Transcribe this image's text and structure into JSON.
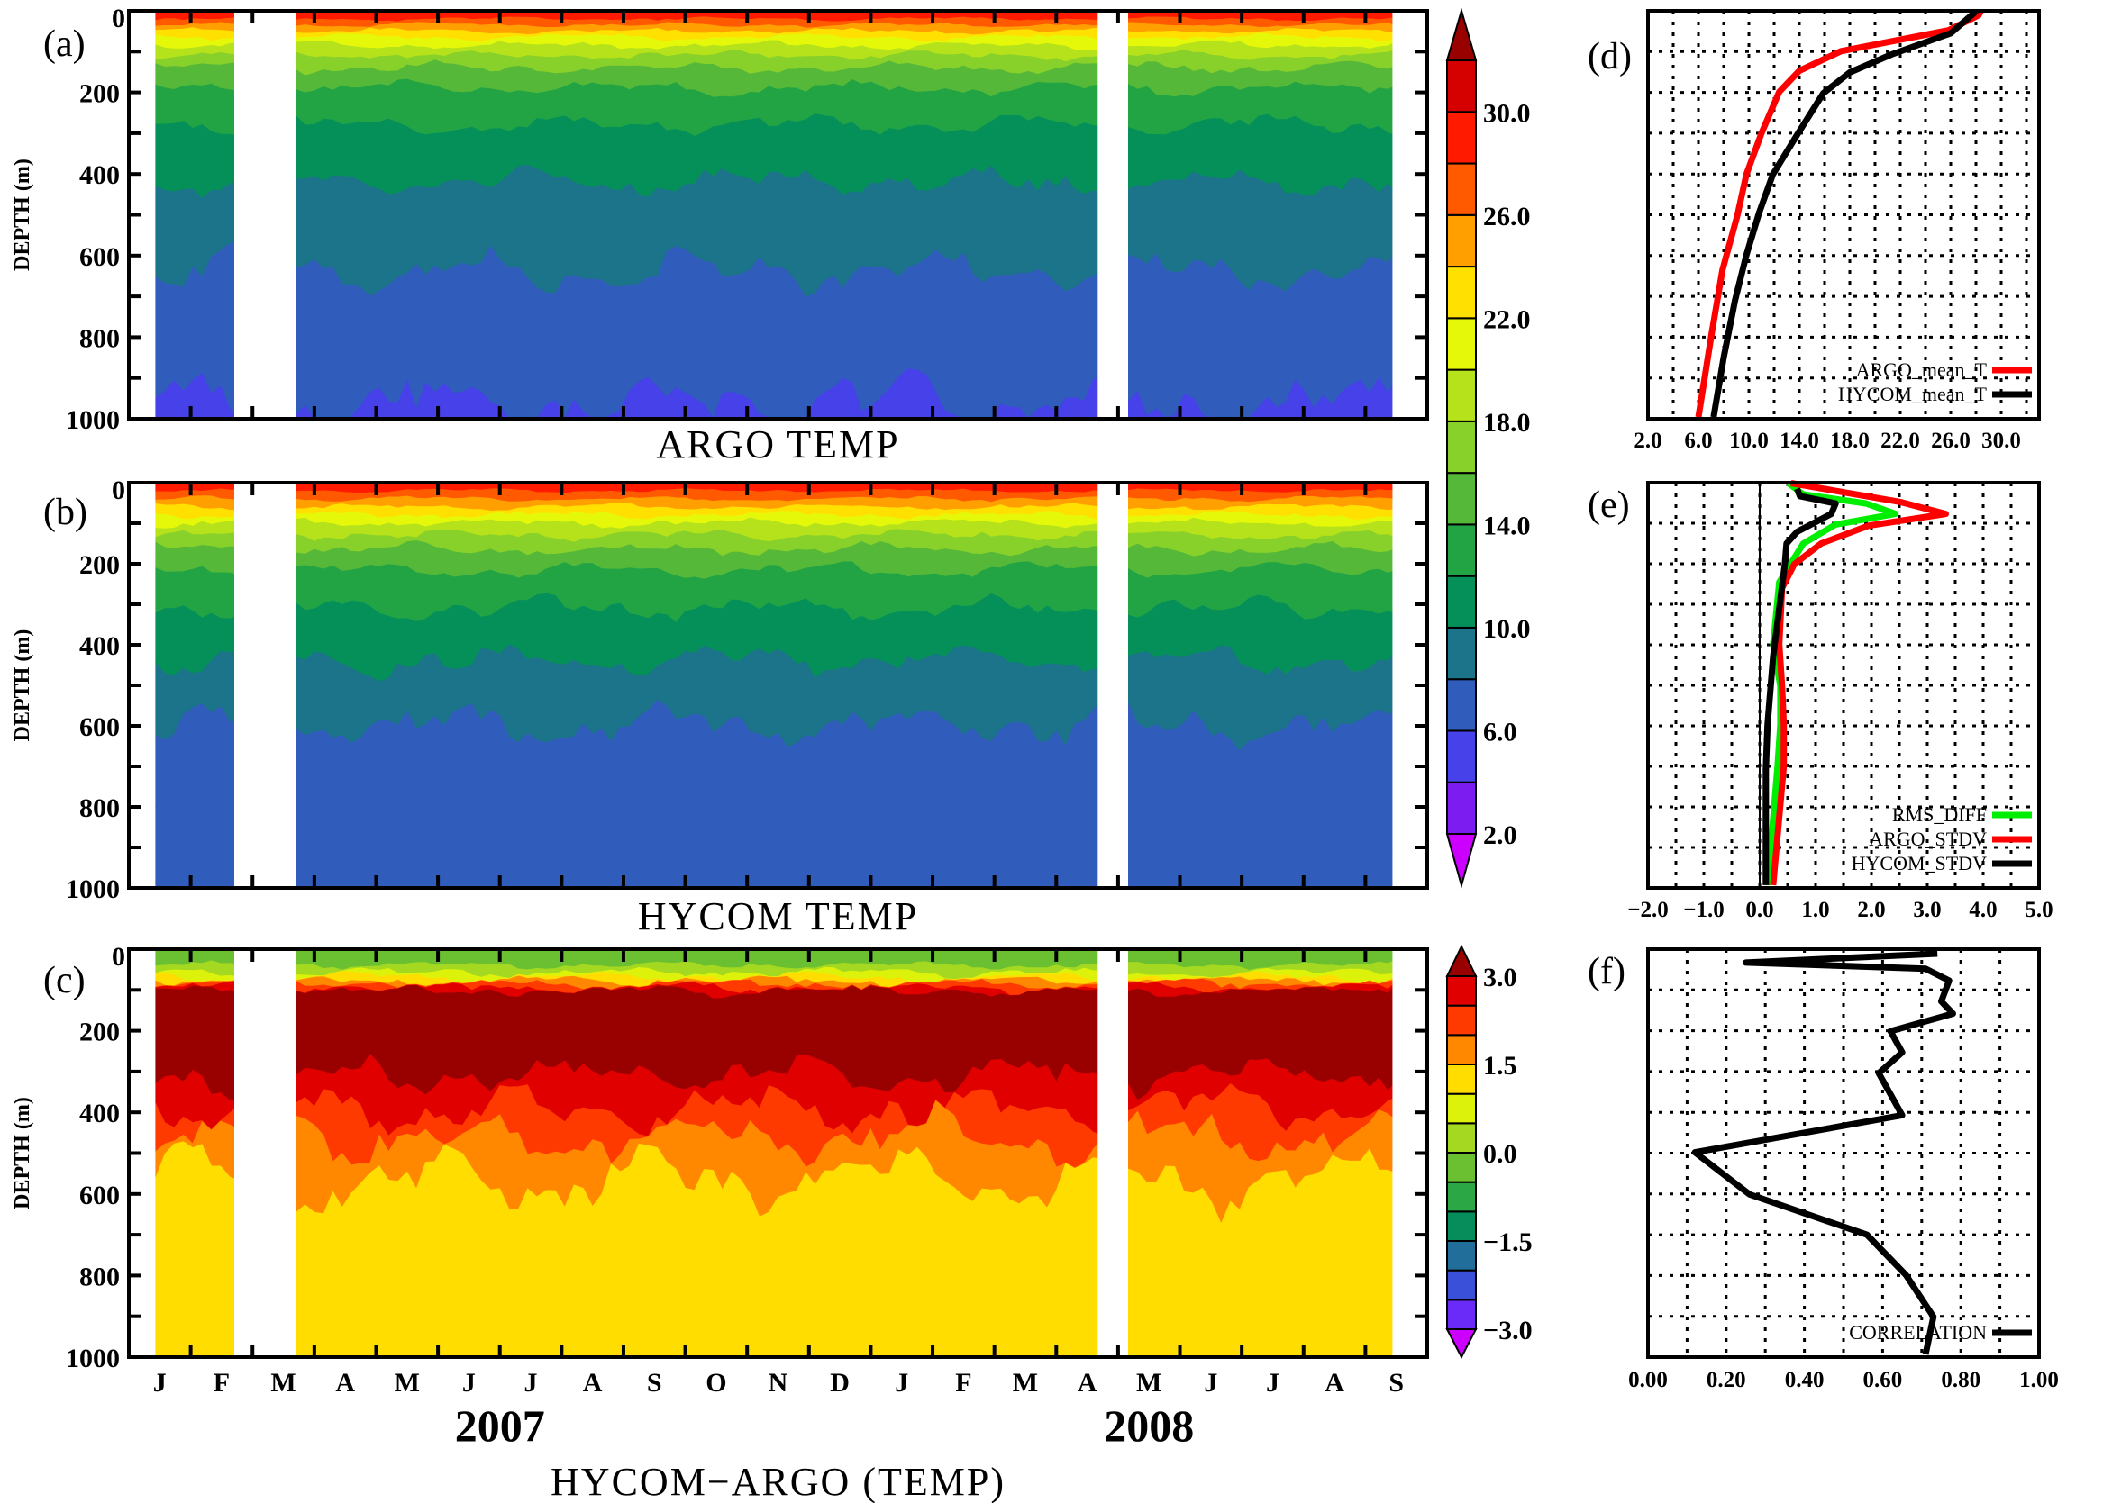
{
  "time_axis": {
    "x_range": [
      "2007-01-01",
      "2008-10-01"
    ],
    "month_labels": [
      "J",
      "F",
      "M",
      "A",
      "M",
      "J",
      "J",
      "A",
      "S",
      "O",
      "N",
      "D",
      "J",
      "F",
      "M",
      "A",
      "M",
      "J",
      "J",
      "A",
      "S"
    ],
    "years": [
      "2007",
      "2008"
    ]
  },
  "colorbars": {
    "temperature": {
      "levels": [
        2,
        4,
        6,
        8,
        10,
        12,
        14,
        16,
        18,
        20,
        22,
        24,
        26,
        28,
        30,
        32
      ],
      "colors": [
        "#7c1cf0",
        "#4641e8",
        "#305cbb",
        "#1b7489",
        "#05905a",
        "#22a444",
        "#55b838",
        "#88d02a",
        "#b5e21a",
        "#e5f80a",
        "#ffe000",
        "#ffa000",
        "#ff5a00",
        "#ff1a00",
        "#d50000"
      ],
      "over_color": "#990000",
      "under_color": "#cc00ff",
      "labels": [
        {
          "value": 2,
          "text": "2.0"
        },
        {
          "value": 6,
          "text": "6.0"
        },
        {
          "value": 10,
          "text": "10.0"
        },
        {
          "value": 14,
          "text": "14.0"
        },
        {
          "value": 18,
          "text": "18.0"
        },
        {
          "value": 22,
          "text": "22.0"
        },
        {
          "value": 26,
          "text": "26.0"
        },
        {
          "value": 30,
          "text": "30.0"
        }
      ]
    },
    "difference": {
      "levels": [
        -3,
        -2.5,
        -2,
        -1.5,
        -1,
        -0.5,
        0,
        0.5,
        1,
        1.5,
        2,
        2.5,
        3
      ],
      "colors": [
        "#6a2af8",
        "#3b50d8",
        "#216e9a",
        "#078c5c",
        "#2ba845",
        "#6ac030",
        "#a5d820",
        "#ddf20a",
        "#ffdd00",
        "#ff8800",
        "#ff3a00",
        "#e00000"
      ],
      "over_color": "#990000",
      "under_color": "#cc00ff",
      "labels": [
        {
          "value": -3,
          "text": "−3.0"
        },
        {
          "value": -1.5,
          "text": "−1.5"
        },
        {
          "value": 0,
          "text": "0.0"
        },
        {
          "value": 1.5,
          "text": "1.5"
        },
        {
          "value": 3,
          "text": "3.0"
        }
      ]
    }
  },
  "chart_data": [
    {
      "panel_label": "(a)",
      "type": "heatmap",
      "title": "ARGO TEMP",
      "ylabel": "DEPTH (m)",
      "ylim": [
        1000,
        0
      ],
      "yticks": [
        "0",
        "200",
        "400",
        "600",
        "800",
        "1000"
      ],
      "colorbar": "temperature",
      "data_segments": [
        [
          "2007-01-14",
          "2007-02-22"
        ],
        [
          "2007-03-22",
          "2008-04-21"
        ],
        [
          "2008-05-06",
          "2008-09-14"
        ]
      ],
      "layers": [
        {
          "range": [
            28,
            30
          ],
          "bottom_m": 20
        },
        {
          "range": [
            26,
            28
          ],
          "bottom_m": 35
        },
        {
          "range": [
            24,
            26
          ],
          "bottom_m": 50
        },
        {
          "range": [
            22,
            24
          ],
          "bottom_m": 65
        },
        {
          "range": [
            20,
            22
          ],
          "bottom_m": 85
        },
        {
          "range": [
            18,
            20
          ],
          "bottom_m": 110
        },
        {
          "range": [
            16,
            18
          ],
          "bottom_m": 140
        },
        {
          "range": [
            14,
            16
          ],
          "bottom_m": 190
        },
        {
          "range": [
            12,
            14
          ],
          "bottom_m": 280
        },
        {
          "range": [
            10,
            12
          ],
          "bottom_m": 420
        },
        {
          "range": [
            8,
            10
          ],
          "bottom_m": 640
        },
        {
          "range": [
            6,
            8
          ],
          "bottom_m": 965
        },
        {
          "range": [
            4,
            6
          ],
          "bottom_m": 1000
        }
      ]
    },
    {
      "panel_label": "(b)",
      "type": "heatmap",
      "title": "HYCOM TEMP",
      "ylabel": "DEPTH (m)",
      "ylim": [
        1000,
        0
      ],
      "yticks": [
        "0",
        "200",
        "400",
        "600",
        "800",
        "1000"
      ],
      "colorbar": "temperature",
      "data_segments": [
        [
          "2007-01-14",
          "2007-02-22"
        ],
        [
          "2007-03-22",
          "2008-04-21"
        ],
        [
          "2008-05-06",
          "2008-09-14"
        ]
      ],
      "layers": [
        {
          "range": [
            28,
            30
          ],
          "bottom_m": 20
        },
        {
          "range": [
            26,
            28
          ],
          "bottom_m": 40
        },
        {
          "range": [
            24,
            26
          ],
          "bottom_m": 60
        },
        {
          "range": [
            22,
            24
          ],
          "bottom_m": 80
        },
        {
          "range": [
            20,
            22
          ],
          "bottom_m": 100
        },
        {
          "range": [
            18,
            20
          ],
          "bottom_m": 130
        },
        {
          "range": [
            16,
            18
          ],
          "bottom_m": 165
        },
        {
          "range": [
            14,
            16
          ],
          "bottom_m": 215
        },
        {
          "range": [
            12,
            14
          ],
          "bottom_m": 310
        },
        {
          "range": [
            10,
            12
          ],
          "bottom_m": 440
        },
        {
          "range": [
            8,
            10
          ],
          "bottom_m": 600
        },
        {
          "range": [
            6,
            8
          ],
          "bottom_m": 870
        },
        {
          "range": [
            6,
            8
          ],
          "bottom_m": 1000
        }
      ]
    },
    {
      "panel_label": "(c)",
      "type": "heatmap",
      "title": "HYCOM−ARGO (TEMP)",
      "ylabel": "DEPTH (m)",
      "ylim": [
        1000,
        0
      ],
      "yticks": [
        "0",
        "200",
        "400",
        "600",
        "800",
        "1000"
      ],
      "colorbar": "difference",
      "data_segments": [
        [
          "2007-01-14",
          "2007-02-22"
        ],
        [
          "2007-03-22",
          "2008-04-21"
        ],
        [
          "2008-05-06",
          "2008-09-14"
        ]
      ],
      "layers": [
        {
          "range": [
            -0.5,
            0
          ],
          "bottom_m": 40
        },
        {
          "range": [
            0,
            0.5
          ],
          "bottom_m": 58
        },
        {
          "range": [
            0.5,
            1
          ],
          "bottom_m": 68
        },
        {
          "range": [
            1,
            1.5
          ],
          "bottom_m": 76
        },
        {
          "range": [
            1.5,
            2
          ],
          "bottom_m": 84
        },
        {
          "range": [
            2,
            2.5
          ],
          "bottom_m": 92
        },
        {
          "range": [
            2.5,
            3
          ],
          "bottom_m": 100
        },
        {
          "range": [
            3,
            null
          ],
          "bottom_m": 310
        },
        {
          "range": [
            2.5,
            3
          ],
          "bottom_m": 390
        },
        {
          "range": [
            2,
            2.5
          ],
          "bottom_m": 460
        },
        {
          "range": [
            1.5,
            2
          ],
          "bottom_m": 570
        },
        {
          "range": [
            1,
            1.5
          ],
          "bottom_m": 1000
        }
      ]
    },
    {
      "panel_label": "(d)",
      "type": "line",
      "xlim": [
        2,
        33
      ],
      "ylim": [
        1000,
        0
      ],
      "xticks": [
        {
          "value": 2,
          "text": "2.0"
        },
        {
          "value": 6,
          "text": "6.0"
        },
        {
          "value": 10,
          "text": "10.0"
        },
        {
          "value": 14,
          "text": "14.0"
        },
        {
          "value": 18,
          "text": "18.0"
        },
        {
          "value": 22,
          "text": "22.0"
        },
        {
          "value": 26,
          "text": "26.0"
        },
        {
          "value": 30,
          "text": "30.0"
        }
      ],
      "grid": true,
      "legend_position": "bottom-right",
      "series": [
        {
          "name": "ARGO_mean_T",
          "color": "#ff0000",
          "depth_m": [
            0,
            11,
            48,
            99,
            147,
            199,
            300,
            401,
            500,
            636,
            800,
            996
          ],
          "value": [
            28.4,
            28.2,
            25.8,
            17.3,
            14.0,
            12.4,
            11.0,
            9.8,
            9.1,
            7.9,
            7.0,
            6.0
          ]
        },
        {
          "name": "HYCOM_mean_T",
          "color": "#000000",
          "depth_m": [
            0,
            4,
            55,
            107,
            151,
            202,
            305,
            401,
            496,
            599,
            710,
            850,
            996
          ],
          "value": [
            28.0,
            27.9,
            26.0,
            21.3,
            18.0,
            15.9,
            13.8,
            11.9,
            10.8,
            9.8,
            8.9,
            8.0,
            7.2
          ]
        }
      ]
    },
    {
      "panel_label": "(e)",
      "type": "line",
      "xlim": [
        -2,
        5
      ],
      "ylim": [
        1000,
        0
      ],
      "xticks": [
        {
          "value": -2,
          "text": "−2.0"
        },
        {
          "value": -1,
          "text": "−1.0"
        },
        {
          "value": 0,
          "text": "0.0"
        },
        {
          "value": 1,
          "text": "1.0"
        },
        {
          "value": 2,
          "text": "2.0"
        },
        {
          "value": 3,
          "text": "3.0"
        },
        {
          "value": 4,
          "text": "4.0"
        },
        {
          "value": 5,
          "text": "5.0"
        }
      ],
      "grid": true,
      "legend_position": "bottom-right",
      "series": [
        {
          "name": "RMS_DIFF",
          "color": "#00ee00",
          "depth_m": [
            1,
            29,
            51,
            77,
            103,
            150,
            245,
            399,
            502,
            597,
            700,
            993
          ],
          "value": [
            0.51,
            0.78,
            1.9,
            2.43,
            1.36,
            0.78,
            0.35,
            0.24,
            0.37,
            0.37,
            0.32,
            0.14
          ]
        },
        {
          "name": "ARGO_STDV",
          "color": "#ff0000",
          "depth_m": [
            1,
            48,
            77,
            106,
            150,
            201,
            260,
            399,
            502,
            597,
            700,
            993
          ],
          "value": [
            0.56,
            2.53,
            3.33,
            1.95,
            1.1,
            0.62,
            0.4,
            0.35,
            0.4,
            0.43,
            0.43,
            0.24
          ]
        },
        {
          "name": "HYCOM_STDV",
          "color": "#000000",
          "depth_m": [
            15,
            33,
            51,
            77,
            121,
            150,
            201,
            429,
            597,
            707,
            993
          ],
          "value": [
            0.67,
            0.72,
            1.36,
            1.28,
            0.67,
            0.48,
            0.45,
            0.24,
            0.14,
            0.11,
            0.11
          ]
        }
      ]
    },
    {
      "panel_label": "(f)",
      "type": "line",
      "xlim": [
        0,
        1
      ],
      "ylim": [
        1000,
        0
      ],
      "xticks": [
        {
          "value": 0,
          "text": "0.00"
        },
        {
          "value": 0.2,
          "text": "0.20"
        },
        {
          "value": 0.4,
          "text": "0.40"
        },
        {
          "value": 0.6,
          "text": "0.60"
        },
        {
          "value": 0.8,
          "text": "0.80"
        },
        {
          "value": 1,
          "text": "1.00"
        }
      ],
      "grid": true,
      "legend_position": "bottom-right",
      "series": [
        {
          "name": "CORRELATION",
          "color": "#000000",
          "depth_m": [
            11,
            33,
            48,
            77,
            128,
            158,
            201,
            253,
            304,
            407,
            498,
            601,
            700,
            799,
            901,
            993
          ],
          "value": [
            0.74,
            0.25,
            0.71,
            0.77,
            0.75,
            0.78,
            0.62,
            0.65,
            0.59,
            0.65,
            0.12,
            0.26,
            0.56,
            0.66,
            0.73,
            0.71
          ]
        }
      ]
    }
  ]
}
